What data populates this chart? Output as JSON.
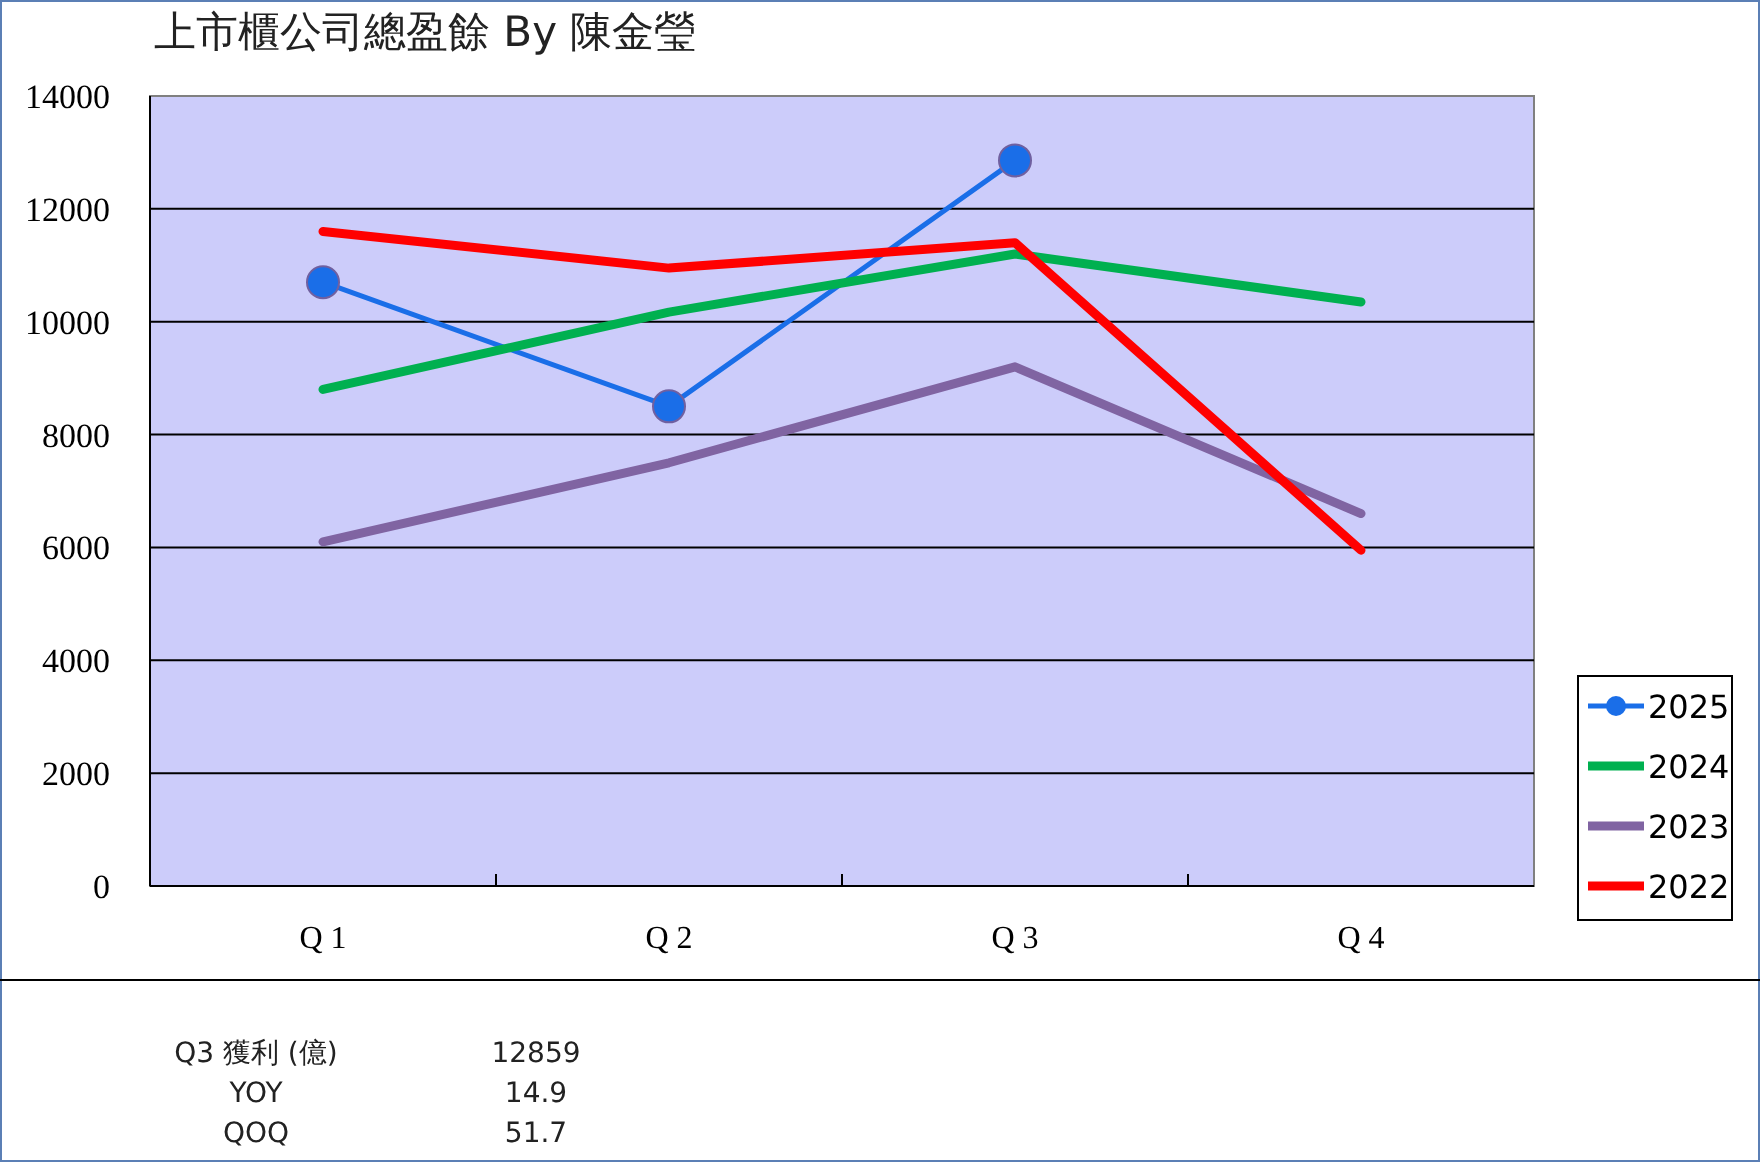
{
  "chart_data": {
    "type": "line",
    "title": "上市櫃公司總盈餘 By 陳金瑩",
    "categories": [
      "Q 1",
      "Q 2",
      "Q 3",
      "Q 4"
    ],
    "series": [
      {
        "name": "2025",
        "color": "#1a6ee8",
        "values": [
          10700,
          8500,
          12859,
          null
        ],
        "marker": "circle"
      },
      {
        "name": "2024",
        "color": "#00b050",
        "values": [
          8800,
          10170,
          11200,
          10350
        ]
      },
      {
        "name": "2023",
        "color": "#8064a2",
        "values": [
          6100,
          7500,
          9200,
          6600
        ]
      },
      {
        "name": "2022",
        "color": "#ff0000",
        "values": [
          11600,
          10950,
          11400,
          5950
        ]
      }
    ],
    "ylim": [
      0,
      14000
    ],
    "yticks": [
      0,
      2000,
      4000,
      6000,
      8000,
      10000,
      12000,
      14000
    ],
    "grid": "y",
    "legend": "right",
    "annotations": [
      "Q3 獲利 (億)",
      "12859",
      "YOY",
      "14.9",
      "QOQ",
      "51.7"
    ]
  }
}
